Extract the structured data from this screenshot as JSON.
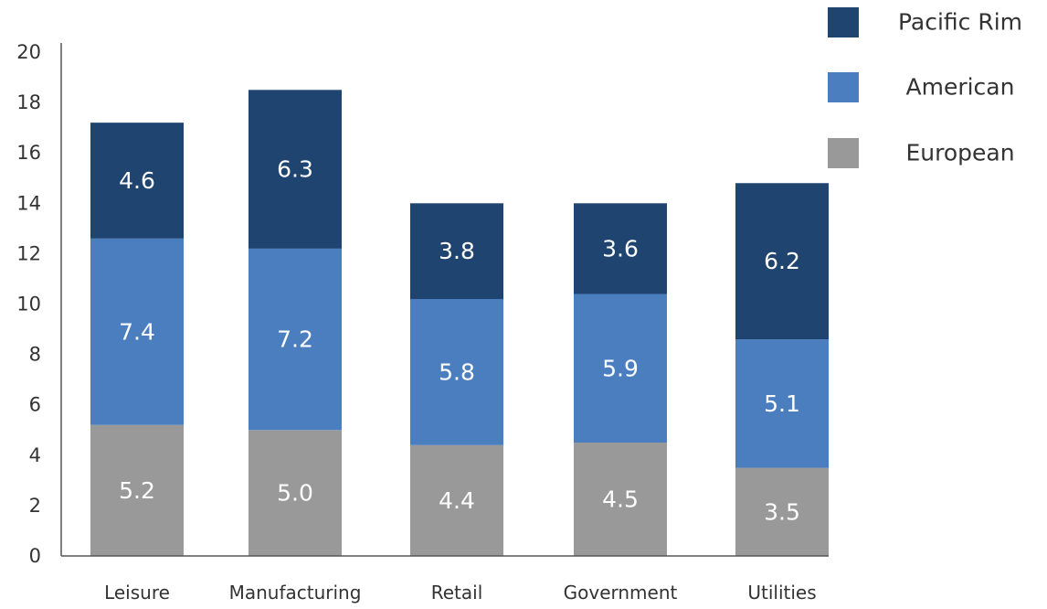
{
  "chart_data": {
    "type": "bar",
    "stacked": true,
    "categories": [
      "Leisure",
      "Manufacturing",
      "Retail",
      "Government",
      "Utilities"
    ],
    "series": [
      {
        "name": "European",
        "color": "#999999",
        "values": [
          5.2,
          5.0,
          4.4,
          4.5,
          3.5
        ],
        "labels": [
          "5.2",
          "5.0",
          "4.4",
          "4.5",
          "3.5"
        ]
      },
      {
        "name": "American",
        "color": "#4a7ebf",
        "values": [
          7.4,
          7.2,
          5.8,
          5.9,
          5.1
        ],
        "labels": [
          "7.4",
          "7.2",
          "5.8",
          "5.9",
          "5.1"
        ]
      },
      {
        "name": "Pacific Rim",
        "color": "#1f446f",
        "values": [
          4.6,
          6.3,
          3.8,
          3.6,
          6.2
        ],
        "labels": [
          "4.6",
          "6.3",
          "3.8",
          "3.6",
          "6.2"
        ]
      }
    ],
    "legend_order": [
      "Pacific Rim",
      "American",
      "European"
    ],
    "yticks": [
      "0",
      "2",
      "4",
      "6",
      "8",
      "10",
      "12",
      "14",
      "16",
      "18",
      "20"
    ],
    "ylim": [
      0,
      20
    ],
    "title": "",
    "xlabel": "",
    "ylabel": "",
    "grid": false,
    "legend_position": "top-right"
  }
}
